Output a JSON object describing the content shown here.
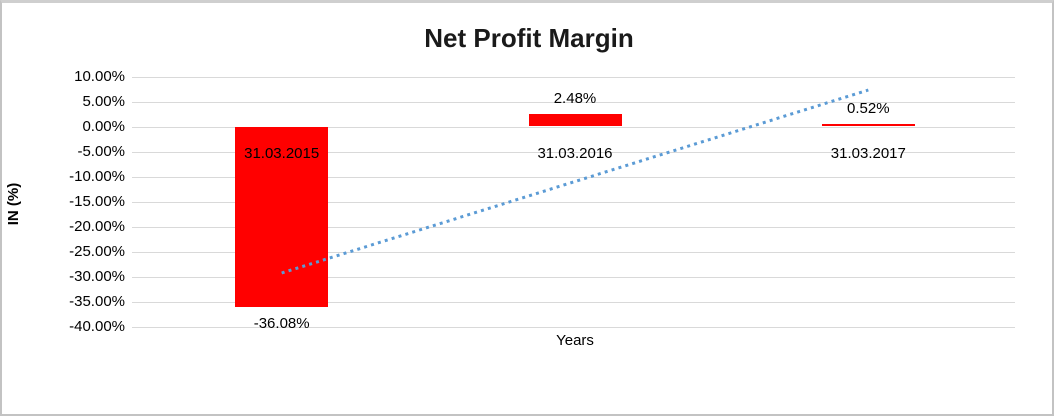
{
  "chart_data": {
    "type": "bar",
    "title": "Net Profit Margin",
    "ylabel": "IN (%)",
    "xlabel": "Years",
    "categories": [
      "31.03.2015",
      "31.03.2016",
      "31.03.2017"
    ],
    "values": [
      -36.08,
      2.48,
      0.52
    ],
    "data_labels": [
      "-36.08%",
      "2.48%",
      "0.52%"
    ],
    "yticks": [
      10,
      5,
      0,
      -5,
      -10,
      -15,
      -20,
      -25,
      -30,
      -35,
      -40
    ],
    "ytick_labels": [
      "10.00%",
      "5.00%",
      "0.00%",
      "-5.00%",
      "-10.00%",
      "-15.00%",
      "-20.00%",
      "-25.00%",
      "-30.00%",
      "-35.00%",
      "-40.00%"
    ],
    "ylim": [
      -40,
      10
    ],
    "grid": true,
    "legend": "none",
    "bar_color": "#ff0000",
    "trendline": {
      "type": "linear",
      "style": "dotted",
      "color": "#5b9bd5",
      "start_value": -29.3,
      "end_value": 7.3
    }
  }
}
